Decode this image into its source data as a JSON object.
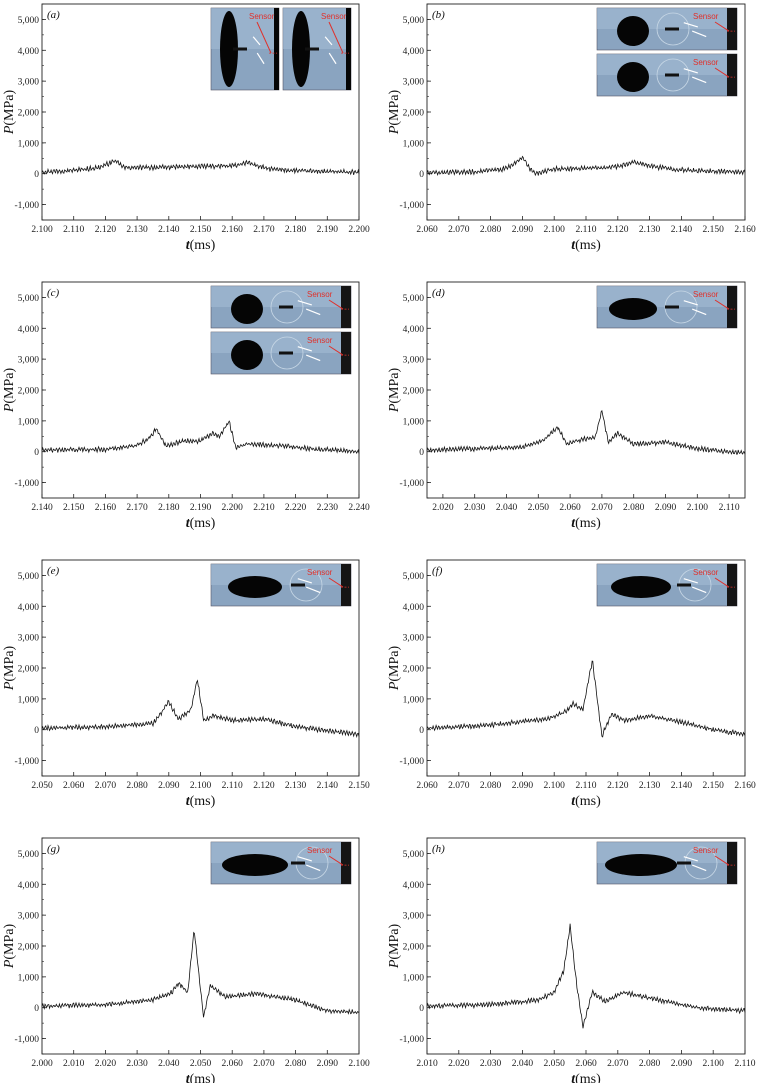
{
  "chart_data": [
    {
      "panel": "(a)",
      "type": "line",
      "xlabel": "t(ms)",
      "ylabel": "P(MPa)",
      "xlim": [
        2.1,
        2.2
      ],
      "ylim": [
        -1500,
        5500
      ],
      "xticks": [
        "2.100",
        "2.110",
        "2.120",
        "2.130",
        "2.140",
        "2.150",
        "2.160",
        "2.170",
        "2.180",
        "2.190",
        "2.200"
      ],
      "yticks": [
        "-1,000",
        "0",
        "1,000",
        "2,000",
        "3,000",
        "4,000",
        "5,000"
      ],
      "inset_images": 2,
      "inset_label": "Sensor",
      "x": [
        2.1,
        2.11,
        2.118,
        2.121,
        2.123,
        2.126,
        2.135,
        2.15,
        2.16,
        2.165,
        2.168,
        2.172,
        2.18,
        2.19,
        2.2
      ],
      "y": [
        60,
        110,
        200,
        330,
        420,
        200,
        200,
        240,
        250,
        370,
        250,
        150,
        100,
        70,
        40
      ]
    },
    {
      "panel": "(b)",
      "type": "line",
      "xlabel": "t(ms)",
      "ylabel": "P(MPa)",
      "xlim": [
        2.06,
        2.16
      ],
      "ylim": [
        -1500,
        5500
      ],
      "xticks": [
        "2.060",
        "2.070",
        "2.080",
        "2.090",
        "2.100",
        "2.110",
        "2.120",
        "2.130",
        "2.140",
        "2.150",
        "2.160"
      ],
      "yticks": [
        "-1,000",
        "0",
        "1,000",
        "2,000",
        "3,000",
        "4,000",
        "5,000"
      ],
      "inset_images": 2,
      "inset_label": "Sensor",
      "x": [
        2.06,
        2.075,
        2.084,
        2.088,
        2.09,
        2.092,
        2.094,
        2.1,
        2.11,
        2.12,
        2.125,
        2.13,
        2.14,
        2.15,
        2.16
      ],
      "y": [
        30,
        60,
        150,
        350,
        550,
        200,
        0,
        150,
        180,
        230,
        380,
        250,
        120,
        80,
        50
      ]
    },
    {
      "panel": "(c)",
      "type": "line",
      "xlabel": "t(ms)",
      "ylabel": "P(MPa)",
      "xlim": [
        2.14,
        2.24
      ],
      "ylim": [
        -1500,
        5500
      ],
      "xticks": [
        "2.140",
        "2.150",
        "2.160",
        "2.170",
        "2.180",
        "2.190",
        "2.200",
        "2.210",
        "2.220",
        "2.230",
        "2.240"
      ],
      "yticks": [
        "-1,000",
        "0",
        "1,000",
        "2,000",
        "3,000",
        "4,000",
        "5,000"
      ],
      "inset_images": 2,
      "inset_label": "Sensor",
      "x": [
        2.14,
        2.16,
        2.17,
        2.174,
        2.176,
        2.179,
        2.185,
        2.19,
        2.194,
        2.196,
        2.199,
        2.201,
        2.205,
        2.215,
        2.225,
        2.24
      ],
      "y": [
        50,
        80,
        200,
        450,
        750,
        200,
        350,
        350,
        600,
        500,
        1000,
        150,
        250,
        200,
        100,
        0
      ]
    },
    {
      "panel": "(d)",
      "type": "line",
      "xlabel": "t(ms)",
      "ylabel": "P(MPa)",
      "xlim": [
        2.015,
        2.115
      ],
      "ylim": [
        -1500,
        5500
      ],
      "xticks": [
        "2.020",
        "2.030",
        "2.040",
        "2.050",
        "2.060",
        "2.070",
        "2.080",
        "2.090",
        "2.100",
        "2.110"
      ],
      "yticks": [
        "-1,000",
        "0",
        "1,000",
        "2,000",
        "3,000",
        "4,000",
        "5,000"
      ],
      "inset_images": 1,
      "inset_label": "Sensor",
      "x": [
        2.015,
        2.03,
        2.045,
        2.052,
        2.056,
        2.059,
        2.064,
        2.068,
        2.07,
        2.072,
        2.075,
        2.08,
        2.09,
        2.1,
        2.115
      ],
      "y": [
        50,
        100,
        150,
        400,
        800,
        250,
        400,
        500,
        1350,
        300,
        600,
        250,
        300,
        100,
        -50
      ]
    },
    {
      "panel": "(e)",
      "type": "line",
      "xlabel": "t(ms)",
      "ylabel": "P(MPa)",
      "xlim": [
        2.05,
        2.15
      ],
      "ylim": [
        -1500,
        5500
      ],
      "xticks": [
        "2.050",
        "2.060",
        "2.070",
        "2.080",
        "2.090",
        "2.100",
        "2.110",
        "2.120",
        "2.130",
        "2.140",
        "2.150"
      ],
      "yticks": [
        "-1,000",
        "0",
        "1,000",
        "2,000",
        "3,000",
        "4,000",
        "5,000"
      ],
      "inset_images": 1,
      "inset_label": "Sensor",
      "x": [
        2.05,
        2.07,
        2.085,
        2.088,
        2.09,
        2.093,
        2.097,
        2.099,
        2.101,
        2.104,
        2.11,
        2.12,
        2.13,
        2.15
      ],
      "y": [
        50,
        100,
        200,
        600,
        900,
        350,
        650,
        1650,
        300,
        450,
        300,
        350,
        100,
        -150
      ]
    },
    {
      "panel": "(f)",
      "type": "line",
      "xlabel": "t(ms)",
      "ylabel": "P(MPa)",
      "xlim": [
        2.06,
        2.16
      ],
      "ylim": [
        -1500,
        5500
      ],
      "xticks": [
        "2.060",
        "2.070",
        "2.080",
        "2.090",
        "2.100",
        "2.110",
        "2.120",
        "2.130",
        "2.140",
        "2.150",
        "2.160"
      ],
      "yticks": [
        "-1,000",
        "0",
        "1,000",
        "2,000",
        "3,000",
        "4,000",
        "5,000"
      ],
      "inset_images": 1,
      "inset_label": "Sensor",
      "x": [
        2.06,
        2.08,
        2.098,
        2.104,
        2.106,
        2.109,
        2.112,
        2.114,
        2.115,
        2.118,
        2.122,
        2.13,
        2.14,
        2.15,
        2.16
      ],
      "y": [
        50,
        150,
        350,
        600,
        850,
        650,
        2250,
        600,
        -200,
        500,
        300,
        450,
        250,
        0,
        -150
      ]
    },
    {
      "panel": "(g)",
      "type": "line",
      "xlabel": "t(ms)",
      "ylabel": "P(MPa)",
      "xlim": [
        2.0,
        2.1
      ],
      "ylim": [
        -1500,
        5500
      ],
      "xticks": [
        "2.000",
        "2.010",
        "2.020",
        "2.030",
        "2.040",
        "2.050",
        "2.060",
        "2.070",
        "2.080",
        "2.090",
        "2.100"
      ],
      "yticks": [
        "-1,000",
        "0",
        "1,000",
        "2,000",
        "3,000",
        "4,000",
        "5,000"
      ],
      "inset_images": 1,
      "inset_label": "Sensor",
      "x": [
        2.0,
        2.02,
        2.035,
        2.041,
        2.043,
        2.046,
        2.048,
        2.05,
        2.051,
        2.053,
        2.058,
        2.068,
        2.08,
        2.09,
        2.1
      ],
      "y": [
        50,
        100,
        250,
        500,
        800,
        500,
        2550,
        600,
        -300,
        700,
        350,
        450,
        250,
        -100,
        -150
      ]
    },
    {
      "panel": "(h)",
      "type": "line",
      "xlabel": "t(ms)",
      "ylabel": "P(MPa)",
      "xlim": [
        2.01,
        2.11
      ],
      "ylim": [
        -1500,
        5500
      ],
      "xticks": [
        "2.010",
        "2.020",
        "2.030",
        "2.040",
        "2.050",
        "2.060",
        "2.070",
        "2.080",
        "2.090",
        "2.100",
        "2.110"
      ],
      "yticks": [
        "-1,000",
        "0",
        "1,000",
        "2,000",
        "3,000",
        "4,000",
        "5,000"
      ],
      "inset_images": 1,
      "inset_label": "Sensor",
      "x": [
        2.01,
        2.03,
        2.045,
        2.05,
        2.053,
        2.055,
        2.057,
        2.059,
        2.062,
        2.066,
        2.072,
        2.076,
        2.085,
        2.095,
        2.11
      ],
      "y": [
        50,
        100,
        250,
        500,
        1200,
        2650,
        800,
        -600,
        500,
        200,
        500,
        400,
        200,
        0,
        -100
      ]
    }
  ]
}
